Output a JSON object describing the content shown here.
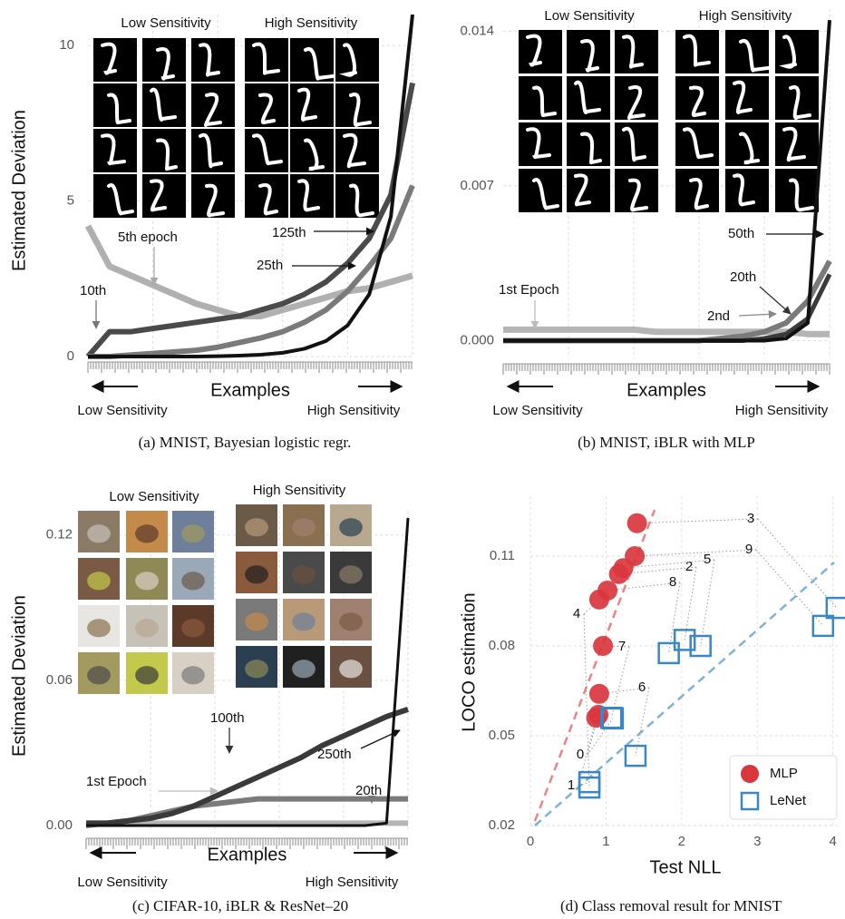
{
  "chart_data": [
    {
      "type": "line",
      "caption": "(a) MNIST, Bayesian logistic regr.",
      "y_label": "Estimated Deviation",
      "x_label": "Examples",
      "x_left_label": "Low Sensitivity",
      "x_right_label": "High Sensitivity",
      "inset_titles": [
        "Low Sensitivity",
        "High Sensitivity"
      ],
      "ylim": [
        0,
        11
      ],
      "yticks": [
        0,
        5,
        10
      ],
      "grid": true,
      "series": [
        {
          "name": "5th epoch",
          "color": "#b0b0b0",
          "values": [
            4.2,
            2.9,
            2.6,
            2.3,
            2.0,
            1.7,
            1.5,
            1.3,
            1.3,
            1.5,
            1.7,
            1.9,
            2.1,
            2.2,
            2.4,
            2.6
          ]
        },
        {
          "name": "10th",
          "color": "#4a4a4a",
          "values": [
            0,
            0.8,
            0.8,
            0.9,
            1.0,
            1.1,
            1.2,
            1.3,
            1.5,
            1.7,
            2.0,
            2.4,
            3.0,
            3.8,
            5.2,
            8.8
          ]
        },
        {
          "name": "25th",
          "color": "#7a7a7a",
          "values": [
            0,
            0,
            0.05,
            0.1,
            0.15,
            0.2,
            0.3,
            0.45,
            0.6,
            0.8,
            1.1,
            1.5,
            2.1,
            2.9,
            3.8,
            5.5
          ]
        },
        {
          "name": "125th",
          "color": "#111111",
          "values": [
            0,
            0,
            0,
            0,
            0,
            0,
            0.01,
            0.03,
            0.06,
            0.12,
            0.25,
            0.5,
            1.0,
            2.0,
            4.5,
            11
          ]
        }
      ]
    },
    {
      "type": "line",
      "caption": "(b) MNIST, iBLR with MLP",
      "x_label": "Examples",
      "x_left_label": "Low Sensitivity",
      "x_right_label": "High Sensitivity",
      "inset_titles": [
        "Low Sensitivity",
        "High Sensitivity"
      ],
      "ylim": [
        -0.0008,
        0.015
      ],
      "yticks": [
        {
          "value": 0,
          "label": "0.000"
        },
        0.007,
        0.014
      ],
      "grid": true,
      "series": [
        {
          "name": "1st Epoch",
          "color": "#b5b5b5",
          "values": [
            0.0005,
            0.0005,
            0.0005,
            0.0005,
            0.0005,
            0.0005,
            0.0005,
            0.0004,
            0.0004,
            0.0004,
            0.0004,
            0.0004,
            0.0004,
            0.0004,
            0.0003,
            0.0003
          ]
        },
        {
          "name": "2nd",
          "color": "#7a7a7a",
          "values": [
            0,
            0,
            0,
            0,
            0,
            0,
            0,
            0,
            0,
            0,
            0.0001,
            0.0002,
            0.0004,
            0.0008,
            0.0018,
            0.0036
          ]
        },
        {
          "name": "20th",
          "color": "#3a3a3a",
          "values": [
            0,
            0,
            0,
            0,
            0,
            0,
            0,
            0,
            0,
            0,
            0,
            0,
            0.0001,
            0.0003,
            0.001,
            0.003
          ]
        },
        {
          "name": "50th",
          "color": "#111111",
          "values": [
            0,
            0,
            0,
            0,
            0,
            0,
            0,
            0,
            0,
            0,
            0,
            0,
            0,
            0.0001,
            0.0008,
            0.0145
          ]
        }
      ]
    },
    {
      "type": "line",
      "caption": "(c) CIFAR-10, iBLR & ResNet–20",
      "y_label": "Estimated Deviation",
      "x_label": "Examples",
      "x_left_label": "Low Sensitivity",
      "x_right_label": "High Sensitivity",
      "inset_titles": [
        "Low Sensitivity",
        "High Sensitivity"
      ],
      "ylim": [
        -0.003,
        0.13
      ],
      "yticks": [
        {
          "value": 0,
          "label": "0.00"
        },
        0.06,
        0.12
      ],
      "grid": true,
      "series": [
        {
          "name": "1st Epoch",
          "color": "#b5b5b5",
          "values": [
            0.001,
            0.001,
            0.001,
            0.001,
            0.001,
            0.001,
            0.001,
            0.001,
            0.001,
            0.001,
            0.001,
            0.001,
            0.001,
            0.001,
            0.001,
            0.001
          ]
        },
        {
          "name": "20th",
          "color": "#7a7a7a",
          "values": [
            0,
            0.001,
            0.002,
            0.004,
            0.006,
            0.008,
            0.009,
            0.01,
            0.011,
            0.011,
            0.011,
            0.011,
            0.011,
            0.011,
            0.011,
            0.011
          ]
        },
        {
          "name": "100th",
          "color": "#3a3a3a",
          "values": [
            0.001,
            0.001,
            0.002,
            0.003,
            0.005,
            0.008,
            0.012,
            0.016,
            0.02,
            0.024,
            0.028,
            0.033,
            0.037,
            0.041,
            0.045,
            0.048
          ]
        },
        {
          "name": "250th",
          "color": "#111111",
          "values": [
            0,
            0,
            0,
            0,
            0,
            0,
            0,
            0,
            0,
            0,
            0,
            0,
            0,
            0,
            0.001,
            0.127
          ]
        }
      ]
    },
    {
      "type": "scatter",
      "caption": "(d) Class removal result for MNIST",
      "x_label": "Test NLL",
      "y_label": "LOCO estimation",
      "xlim": [
        0,
        4.1
      ],
      "xticks": [
        0,
        1,
        2,
        3,
        4
      ],
      "ylim": [
        0.02,
        0.13
      ],
      "yticks": [
        0.02,
        0.05,
        0.08,
        0.11
      ],
      "grid": true,
      "legend": "lower right",
      "point_labels": [
        "0",
        "1",
        "2",
        "3",
        "4",
        "5",
        "6",
        "7",
        "8",
        "9"
      ],
      "series": [
        {
          "name": "MLP",
          "color": "#d9363e",
          "marker": "circle",
          "x": [
            0.9,
            0.87,
            1.17,
            1.41,
            0.91,
            1.23,
            0.91,
            0.96,
            1.02,
            1.38
          ],
          "values": [
            0.057,
            0.056,
            0.104,
            0.121,
            0.0955,
            0.106,
            0.064,
            0.08,
            0.0985,
            0.11
          ]
        },
        {
          "name": "LeNet",
          "color": "#3b87c3",
          "marker": "square",
          "x": [
            1.09,
            0.78,
            2.04,
            4.05,
            0.78,
            2.25,
            1.39,
            1.07,
            1.83,
            3.87
          ],
          "values": [
            0.0558,
            0.0345,
            0.082,
            0.0927,
            0.0327,
            0.08,
            0.0433,
            0.056,
            0.0776,
            0.0867
          ]
        }
      ]
    }
  ]
}
